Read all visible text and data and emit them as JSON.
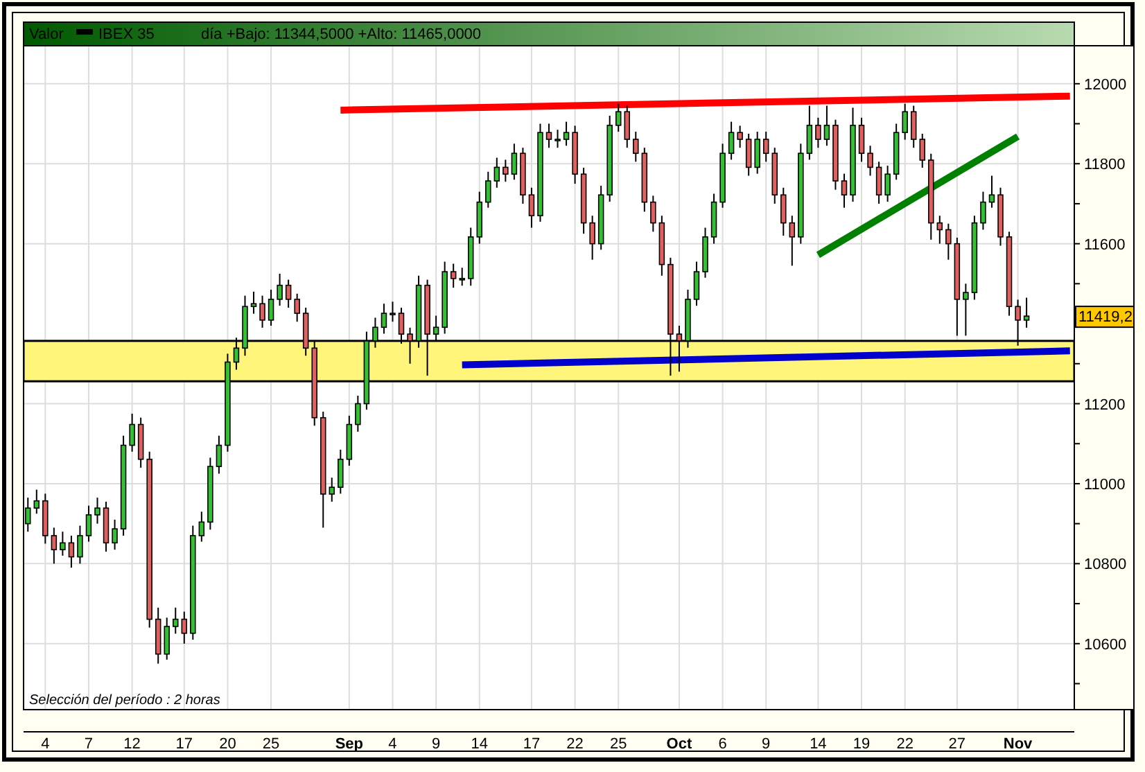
{
  "chart_data": {
    "type": "candlestick",
    "title": "día +Bajo: 11344,5000 +Alto: 11465,0000",
    "legend_title": "Valor",
    "legend": "top left",
    "grid": true,
    "categories": [
      null,
      null,
      "4",
      null,
      null,
      null,
      null,
      "7",
      null,
      null,
      null,
      null,
      "12",
      null,
      null,
      null,
      null,
      null,
      "17",
      null,
      null,
      null,
      null,
      "20",
      null,
      null,
      null,
      null,
      "25",
      null,
      null,
      null,
      null,
      null,
      null,
      null,
      null,
      "Sep",
      null,
      null,
      null,
      null,
      "4",
      null,
      null,
      null,
      null,
      "9",
      null,
      null,
      null,
      null,
      "14",
      null,
      null,
      null,
      null,
      null,
      "17",
      null,
      null,
      null,
      null,
      "22",
      null,
      null,
      null,
      null,
      "25",
      null,
      null,
      null,
      null,
      null,
      null,
      "Oct",
      null,
      null,
      null,
      null,
      "6",
      null,
      null,
      null,
      null,
      "9",
      null,
      null,
      null,
      null,
      null,
      "14",
      null,
      null,
      null,
      null,
      "19",
      null,
      null,
      null,
      null,
      "22",
      null,
      null,
      null,
      null,
      null,
      "27",
      null,
      null,
      null,
      null,
      null,
      null,
      "Nov",
      null,
      null,
      null,
      null,
      null,
      null
    ],
    "ylim": [
      10435,
      12095
    ],
    "yticks": [
      {
        "value": 10500,
        "label": null
      },
      10600,
      {
        "value": 10700,
        "label": null
      },
      10800,
      {
        "value": 10900,
        "label": null
      },
      11000,
      {
        "value": 11100,
        "label": null
      },
      11200,
      {
        "value": 11300,
        "label": null
      },
      {
        "value": 11400,
        "label": null
      },
      {
        "value": 11500,
        "label": null
      },
      11600,
      {
        "value": 11700,
        "label": null
      },
      11800,
      {
        "value": 11900,
        "label": null
      },
      12000
    ],
    "bands": [
      {
        "axis": "y",
        "from": 11256,
        "to": 11357,
        "color": "#fff57a"
      }
    ],
    "series": [
      {
        "name": "IBEX 35",
        "color": "#000000",
        "ohlc": [
          [
            10900,
            10965,
            10880,
            10939
          ],
          [
            10939,
            10985,
            10925,
            10957
          ],
          [
            10957,
            10975,
            10850,
            10870
          ],
          [
            10870,
            10890,
            10800,
            10835
          ],
          [
            10835,
            10880,
            10820,
            10852
          ],
          [
            10852,
            10870,
            10790,
            10817
          ],
          [
            10817,
            10895,
            10800,
            10870
          ],
          [
            10870,
            10945,
            10855,
            10922
          ],
          [
            10922,
            10965,
            10900,
            10939
          ],
          [
            10939,
            10955,
            10830,
            10852
          ],
          [
            10852,
            10910,
            10835,
            10887
          ],
          [
            10887,
            11120,
            10870,
            11096
          ],
          [
            11096,
            11175,
            11080,
            11148
          ],
          [
            11148,
            11165,
            11040,
            11061
          ],
          [
            11061,
            11080,
            10640,
            10661
          ],
          [
            10661,
            10690,
            10550,
            10574
          ],
          [
            10574,
            10665,
            10560,
            10643
          ],
          [
            10643,
            10690,
            10625,
            10661
          ],
          [
            10661,
            10680,
            10600,
            10626
          ],
          [
            10626,
            10895,
            10610,
            10870
          ],
          [
            10870,
            10930,
            10855,
            10904
          ],
          [
            10904,
            11065,
            10885,
            11043
          ],
          [
            11043,
            11120,
            11025,
            11096
          ],
          [
            11096,
            11325,
            11080,
            11304
          ],
          [
            11304,
            11365,
            11285,
            11339
          ],
          [
            11339,
            11470,
            11320,
            11443
          ],
          [
            11443,
            11480,
            11425,
            11450
          ],
          [
            11450,
            11470,
            11390,
            11409
          ],
          [
            11409,
            11485,
            11395,
            11461
          ],
          [
            11461,
            11525,
            11445,
            11496
          ],
          [
            11496,
            11510,
            11440,
            11461
          ],
          [
            11461,
            11475,
            11405,
            11426
          ],
          [
            11426,
            11440,
            11320,
            11339
          ],
          [
            11339,
            11355,
            11145,
            11165
          ],
          [
            11165,
            11180,
            10890,
            10974
          ],
          [
            10974,
            11015,
            10955,
            10991
          ],
          [
            10991,
            11085,
            10975,
            11061
          ],
          [
            11061,
            11170,
            11045,
            11148
          ],
          [
            11148,
            11220,
            11130,
            11200
          ],
          [
            11200,
            11380,
            11185,
            11357
          ],
          [
            11357,
            11415,
            11340,
            11391
          ],
          [
            11391,
            11450,
            11375,
            11426
          ],
          [
            11426,
            11455,
            11405,
            11426
          ],
          [
            11426,
            11440,
            11350,
            11374
          ],
          [
            11374,
            11390,
            11300,
            11357
          ],
          [
            11357,
            11520,
            11340,
            11496
          ],
          [
            11496,
            11510,
            11270,
            11374
          ],
          [
            11374,
            11420,
            11355,
            11391
          ],
          [
            11391,
            11555,
            11375,
            11530
          ],
          [
            11530,
            11550,
            11490,
            11513
          ],
          [
            11513,
            11540,
            11495,
            11513
          ],
          [
            11513,
            11640,
            11495,
            11617
          ],
          [
            11617,
            11730,
            11600,
            11704
          ],
          [
            11704,
            11780,
            11690,
            11757
          ],
          [
            11757,
            11815,
            11740,
            11791
          ],
          [
            11791,
            11810,
            11755,
            11774
          ],
          [
            11774,
            11850,
            11760,
            11826
          ],
          [
            11826,
            11840,
            11700,
            11722
          ],
          [
            11722,
            11740,
            11640,
            11670
          ],
          [
            11670,
            11900,
            11655,
            11878
          ],
          [
            11878,
            11900,
            11840,
            11861
          ],
          [
            11861,
            11885,
            11840,
            11861
          ],
          [
            11861,
            11905,
            11845,
            11878
          ],
          [
            11878,
            11895,
            11750,
            11774
          ],
          [
            11774,
            11790,
            11625,
            11652
          ],
          [
            11652,
            11670,
            11560,
            11600
          ],
          [
            11600,
            11745,
            11585,
            11722
          ],
          [
            11722,
            11920,
            11705,
            11896
          ],
          [
            11896,
            11950,
            11880,
            11930
          ],
          [
            11930,
            11945,
            11840,
            11861
          ],
          [
            11861,
            11880,
            11805,
            11826
          ],
          [
            11826,
            11840,
            11680,
            11704
          ],
          [
            11704,
            11720,
            11630,
            11652
          ],
          [
            11652,
            11670,
            11520,
            11548
          ],
          [
            11548,
            11565,
            11270,
            11374
          ],
          [
            11374,
            11395,
            11280,
            11357
          ],
          [
            11357,
            11485,
            11340,
            11461
          ],
          [
            11461,
            11555,
            11445,
            11530
          ],
          [
            11530,
            11640,
            11515,
            11617
          ],
          [
            11617,
            11725,
            11600,
            11704
          ],
          [
            11704,
            11850,
            11690,
            11826
          ],
          [
            11826,
            11905,
            11810,
            11878
          ],
          [
            11878,
            11895,
            11840,
            11861
          ],
          [
            11861,
            11875,
            11770,
            11791
          ],
          [
            11791,
            11880,
            11775,
            11861
          ],
          [
            11861,
            11880,
            11805,
            11826
          ],
          [
            11826,
            11840,
            11700,
            11722
          ],
          [
            11722,
            11740,
            11620,
            11652
          ],
          [
            11652,
            11670,
            11545,
            11617
          ],
          [
            11617,
            11850,
            11600,
            11826
          ],
          [
            11826,
            11945,
            11810,
            11896
          ],
          [
            11896,
            11915,
            11840,
            11861
          ],
          [
            11861,
            11945,
            11845,
            11896
          ],
          [
            11896,
            11910,
            11735,
            11757
          ],
          [
            11757,
            11775,
            11690,
            11722
          ],
          [
            11722,
            11940,
            11705,
            11896
          ],
          [
            11896,
            11915,
            11805,
            11826
          ],
          [
            11826,
            11845,
            11770,
            11791
          ],
          [
            11791,
            11805,
            11700,
            11722
          ],
          [
            11722,
            11795,
            11705,
            11774
          ],
          [
            11774,
            11900,
            11760,
            11878
          ],
          [
            11878,
            11950,
            11860,
            11930
          ],
          [
            11930,
            11945,
            11840,
            11861
          ],
          [
            11861,
            11875,
            11790,
            11809
          ],
          [
            11809,
            11825,
            11610,
            11652
          ],
          [
            11652,
            11670,
            11600,
            11635
          ],
          [
            11635,
            11650,
            11560,
            11600
          ],
          [
            11600,
            11615,
            11370,
            11461
          ],
          [
            11461,
            11500,
            11370,
            11478
          ],
          [
            11478,
            11670,
            11460,
            11652
          ],
          [
            11652,
            11730,
            11635,
            11704
          ],
          [
            11704,
            11770,
            11690,
            11722
          ],
          [
            11722,
            11740,
            11595,
            11617
          ],
          [
            11617,
            11630,
            11420,
            11443
          ],
          [
            11443,
            11460,
            11345,
            11409
          ],
          [
            11409,
            11465,
            11390,
            11419
          ],
          null,
          null,
          null,
          null,
          null
        ]
      },
      {
        "type": "line",
        "color": "#ff0000",
        "values": [
          null,
          null,
          null,
          null,
          null,
          null,
          null,
          null,
          null,
          null,
          null,
          null,
          null,
          null,
          null,
          null,
          null,
          null,
          null,
          null,
          null,
          null,
          null,
          null,
          null,
          null,
          null,
          null,
          null,
          null,
          null,
          null,
          null,
          null,
          null,
          null,
          11934,
          null,
          null,
          null,
          null,
          null,
          null,
          null,
          null,
          null,
          null,
          null,
          null,
          null,
          null,
          null,
          null,
          null,
          null,
          null,
          null,
          null,
          null,
          null,
          null,
          null,
          null,
          null,
          null,
          null,
          null,
          null,
          null,
          null,
          null,
          null,
          null,
          null,
          null,
          null,
          null,
          null,
          null,
          null,
          null,
          null,
          null,
          null,
          null,
          null,
          null,
          null,
          null,
          null,
          null,
          null,
          null,
          null,
          null,
          null,
          null,
          null,
          null,
          null,
          null,
          null,
          null,
          null,
          null,
          null,
          null,
          null,
          null,
          null,
          null,
          null,
          null,
          null,
          null,
          null,
          null,
          null,
          null,
          null,
          11969
        ]
      },
      {
        "type": "line",
        "color": "#008000",
        "values": [
          null,
          null,
          null,
          null,
          null,
          null,
          null,
          null,
          null,
          null,
          null,
          null,
          null,
          null,
          null,
          null,
          null,
          null,
          null,
          null,
          null,
          null,
          null,
          null,
          null,
          null,
          null,
          null,
          null,
          null,
          null,
          null,
          null,
          null,
          null,
          null,
          null,
          null,
          null,
          null,
          null,
          null,
          null,
          null,
          null,
          null,
          null,
          null,
          null,
          null,
          null,
          null,
          null,
          null,
          null,
          null,
          null,
          null,
          null,
          null,
          null,
          null,
          null,
          null,
          null,
          null,
          null,
          null,
          null,
          null,
          null,
          null,
          null,
          null,
          null,
          null,
          null,
          null,
          null,
          null,
          null,
          null,
          null,
          null,
          null,
          null,
          null,
          null,
          null,
          null,
          null,
          11572,
          null,
          null,
          null,
          null,
          null,
          null,
          null,
          null,
          null,
          null,
          null,
          null,
          null,
          null,
          null,
          null,
          null,
          null,
          null,
          null,
          null,
          null,
          11868,
          null,
          null,
          null,
          null,
          null,
          null
        ]
      },
      {
        "type": "line",
        "color": "#0000cc",
        "values": [
          null,
          null,
          null,
          null,
          null,
          null,
          null,
          null,
          null,
          null,
          null,
          null,
          null,
          null,
          null,
          null,
          null,
          null,
          null,
          null,
          null,
          null,
          null,
          null,
          null,
          null,
          null,
          null,
          null,
          null,
          null,
          null,
          null,
          null,
          null,
          null,
          null,
          null,
          null,
          null,
          null,
          null,
          null,
          null,
          null,
          null,
          null,
          null,
          null,
          null,
          11297,
          null,
          null,
          null,
          null,
          null,
          null,
          null,
          null,
          null,
          null,
          null,
          null,
          null,
          null,
          null,
          null,
          null,
          null,
          null,
          null,
          null,
          null,
          null,
          null,
          null,
          null,
          null,
          null,
          null,
          null,
          null,
          null,
          null,
          null,
          null,
          null,
          null,
          null,
          null,
          null,
          null,
          null,
          null,
          null,
          null,
          null,
          null,
          null,
          null,
          null,
          null,
          null,
          null,
          null,
          null,
          null,
          null,
          null,
          null,
          null,
          null,
          null,
          null,
          null,
          null,
          null,
          null,
          null,
          null,
          11332
        ]
      }
    ],
    "annotations": [
      "Selección del período : 2 horas",
      "11419,2"
    ]
  }
}
